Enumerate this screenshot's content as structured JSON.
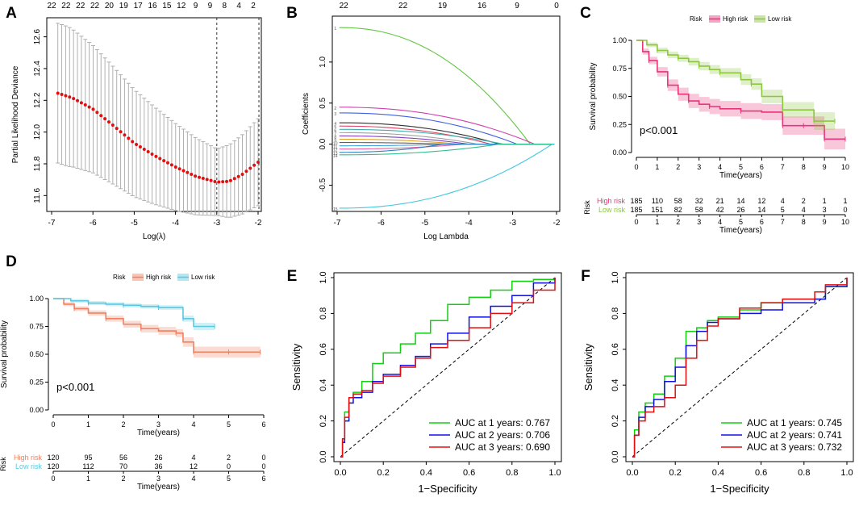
{
  "colors": {
    "lasso_points": "#e01010",
    "lasso_error": "#b0b0b0",
    "high_risk_c": "#e8357a",
    "low_risk_c": "#8cc63f",
    "high_risk_d": "#f08060",
    "low_risk_d": "#5bc8e0",
    "auc1": "#10d010",
    "auc2": "#1010e0",
    "auc3": "#e01010"
  },
  "panel_labels": [
    "A",
    "B",
    "C",
    "D",
    "E",
    "F"
  ],
  "chart_data": [
    {
      "type": "scatter",
      "panel": "A",
      "xlabel": "Log(λ)",
      "ylabel": "Partial Likelihood Deviance",
      "xlim": [
        -7,
        -2
      ],
      "ylim": [
        11.5,
        12.72
      ],
      "xticks": [
        -7,
        -6,
        -5,
        -4,
        -3,
        -2
      ],
      "yticks": [
        11.6,
        11.8,
        12.0,
        12.2,
        12.4,
        12.6
      ],
      "top_axis_labels": [
        "22",
        "22",
        "22",
        "22",
        "20",
        "19",
        "17",
        "16",
        "15",
        "12",
        "9",
        "9",
        "8",
        "4",
        "2"
      ],
      "vlines": [
        -3.0,
        -1.98
      ],
      "curve_points": [
        [
          -6.85,
          12.245
        ],
        [
          -6.5,
          12.215
        ],
        [
          -6.0,
          12.145
        ],
        [
          -5.5,
          12.04
        ],
        [
          -5.0,
          11.93
        ],
        [
          -4.5,
          11.85
        ],
        [
          -4.0,
          11.78
        ],
        [
          -3.5,
          11.72
        ],
        [
          -3.0,
          11.685
        ],
        [
          -2.7,
          11.69
        ],
        [
          -2.4,
          11.73
        ],
        [
          -2.0,
          11.81
        ]
      ],
      "error_half_width": 0.44,
      "error_half_width_at_min": 0.21
    },
    {
      "type": "line",
      "panel": "B",
      "xlabel": "Log Lambda",
      "ylabel": "Coefficients",
      "xlim": [
        -7,
        -2
      ],
      "ylim": [
        -0.8,
        1.5
      ],
      "xticks": [
        -7,
        -6,
        -5,
        -4,
        -3,
        -2
      ],
      "yticks": [
        -0.5,
        0.0,
        0.5,
        1.0
      ],
      "top_axis_labels": [
        "22",
        "22",
        "19",
        "16",
        "9",
        "0"
      ],
      "series": [
        {
          "name": "path1",
          "color": "#60c840",
          "start": 1.42,
          "end_x": -2.6
        },
        {
          "name": "path2",
          "color": "#d040b0",
          "start": 0.45,
          "end_x": -2.5
        },
        {
          "name": "path3",
          "color": "#4060e0",
          "start": 0.38,
          "end_x": -2.9
        },
        {
          "name": "path4",
          "color": "#303030",
          "start": 0.26,
          "end_x": -3.3
        },
        {
          "name": "path5",
          "color": "#e04060",
          "start": 0.22,
          "end_x": -3.5
        },
        {
          "name": "path6",
          "color": "#40b0b0",
          "start": 0.18,
          "end_x": -3.2
        },
        {
          "name": "path7",
          "color": "#a0a0a0",
          "start": 0.14,
          "end_x": -3.8
        },
        {
          "name": "path8",
          "color": "#8040c0",
          "start": 0.1,
          "end_x": -4.0
        },
        {
          "name": "path9",
          "color": "#e0a020",
          "start": 0.06,
          "end_x": -4.2
        },
        {
          "name": "path10",
          "color": "#606060",
          "start": 0.02,
          "end_x": -4.5
        },
        {
          "name": "path11",
          "color": "#40a0e0",
          "start": -0.02,
          "end_x": -4.4
        },
        {
          "name": "path12",
          "color": "#e060a0",
          "start": -0.06,
          "end_x": -4.1
        },
        {
          "name": "path13",
          "color": "#3080c0",
          "start": -0.1,
          "end_x": -4.6
        },
        {
          "name": "path14",
          "color": "#30c090",
          "start": -0.13,
          "end_x": -3.3
        },
        {
          "name": "path15",
          "color": "#40c8e0",
          "start": -0.78,
          "end_x": -2.1
        }
      ]
    },
    {
      "type": "line",
      "panel": "C",
      "title": "Risk",
      "legend": [
        "High risk",
        "Low risk"
      ],
      "xlabel": "Time(years)",
      "ylabel": "Survival probability",
      "xlim": [
        0,
        10
      ],
      "ylim": [
        0,
        1
      ],
      "xticks": [
        0,
        1,
        2,
        3,
        4,
        5,
        6,
        7,
        8,
        9,
        10
      ],
      "yticks": [
        "0.00",
        "0.25",
        "0.50",
        "0.75",
        "1.00"
      ],
      "annotation": "p<0.001",
      "series": [
        {
          "name": "High risk",
          "x": [
            0,
            0.3,
            0.6,
            1,
            1.5,
            2,
            2.5,
            3,
            3.5,
            4,
            5,
            6,
            7,
            7.5,
            8,
            8.5,
            9,
            9.5,
            10
          ],
          "y": [
            1.0,
            0.9,
            0.82,
            0.72,
            0.6,
            0.52,
            0.46,
            0.43,
            0.41,
            0.39,
            0.37,
            0.36,
            0.24,
            0.24,
            0.24,
            0.24,
            0.12,
            0.12,
            0.12
          ]
        },
        {
          "name": "Low risk",
          "x": [
            0,
            0.5,
            1,
            1.5,
            2,
            2.5,
            3,
            3.5,
            4,
            5,
            5.5,
            6,
            7,
            8,
            8.5,
            9,
            9.5
          ],
          "y": [
            1.0,
            0.96,
            0.91,
            0.87,
            0.84,
            0.81,
            0.77,
            0.74,
            0.71,
            0.65,
            0.61,
            0.5,
            0.38,
            0.38,
            0.28,
            0.28,
            0.28
          ]
        }
      ],
      "risk_table": {
        "title": "Risk",
        "xlabel": "Time(years)",
        "rows": [
          {
            "label": "High risk",
            "values": [
              "185",
              "110",
              "58",
              "32",
              "21",
              "14",
              "12",
              "4",
              "2",
              "1",
              "1"
            ]
          },
          {
            "label": "Low risk",
            "values": [
              "185",
              "151",
              "82",
              "58",
              "42",
              "26",
              "14",
              "5",
              "4",
              "3",
              "0"
            ]
          }
        ]
      }
    },
    {
      "type": "line",
      "panel": "D",
      "title": "Risk",
      "legend": [
        "High risk",
        "Low risk"
      ],
      "xlabel": "Time(years)",
      "ylabel": "Survival probability",
      "xlim": [
        0,
        6
      ],
      "ylim": [
        0,
        1
      ],
      "xticks": [
        0,
        1,
        2,
        3,
        4,
        5,
        6
      ],
      "yticks": [
        "0.00",
        "0.25",
        "0.50",
        "0.75",
        "1.00"
      ],
      "annotation": "p<0.001",
      "series": [
        {
          "name": "High risk",
          "x": [
            0,
            0.3,
            0.6,
            1,
            1.5,
            2,
            2.5,
            3,
            3.5,
            3.7,
            4,
            4.5,
            5,
            5.5,
            5.9
          ],
          "y": [
            1.0,
            0.95,
            0.91,
            0.87,
            0.82,
            0.77,
            0.73,
            0.71,
            0.69,
            0.61,
            0.52,
            0.52,
            0.52,
            0.52,
            0.52
          ]
        },
        {
          "name": "Low risk",
          "x": [
            0,
            0.5,
            1,
            1.5,
            2,
            2.5,
            3,
            3.5,
            3.7,
            4,
            4.6
          ],
          "y": [
            1.0,
            0.98,
            0.96,
            0.95,
            0.94,
            0.93,
            0.92,
            0.92,
            0.82,
            0.75,
            0.75
          ]
        }
      ],
      "risk_table": {
        "title": "Risk",
        "xlabel": "Time(years)",
        "rows": [
          {
            "label": "High risk",
            "values": [
              "120",
              "95",
              "56",
              "26",
              "4",
              "2",
              "0"
            ]
          },
          {
            "label": "Low risk",
            "values": [
              "120",
              "112",
              "70",
              "36",
              "12",
              "0",
              "0"
            ]
          }
        ]
      }
    },
    {
      "type": "line",
      "panel": "E",
      "xlabel": "1−Specificity",
      "ylabel": "Sensitivity",
      "xlim": [
        0,
        1
      ],
      "ylim": [
        0,
        1
      ],
      "xticks": [
        "0.0",
        "0.2",
        "0.4",
        "0.6",
        "0.8",
        "1.0"
      ],
      "yticks": [
        "0.0",
        "0.2",
        "0.4",
        "0.6",
        "0.8",
        "1.0"
      ],
      "series": [
        {
          "name": "AUC at 1 years: 0.767",
          "x": [
            0,
            0.01,
            0.02,
            0.04,
            0.06,
            0.1,
            0.15,
            0.2,
            0.28,
            0.35,
            0.42,
            0.5,
            0.6,
            0.7,
            0.8,
            0.9,
            1.0
          ],
          "y": [
            0,
            0.1,
            0.25,
            0.33,
            0.36,
            0.42,
            0.52,
            0.58,
            0.63,
            0.69,
            0.76,
            0.85,
            0.89,
            0.93,
            0.98,
            0.99,
            1.0
          ]
        },
        {
          "name": "AUC at 2 years: 0.706",
          "x": [
            0,
            0.01,
            0.02,
            0.04,
            0.06,
            0.1,
            0.15,
            0.2,
            0.28,
            0.35,
            0.42,
            0.5,
            0.6,
            0.7,
            0.8,
            0.9,
            1.0
          ],
          "y": [
            0,
            0.08,
            0.2,
            0.3,
            0.33,
            0.36,
            0.42,
            0.46,
            0.51,
            0.56,
            0.63,
            0.69,
            0.78,
            0.84,
            0.9,
            0.97,
            1.0
          ]
        },
        {
          "name": "AUC at 3 years: 0.690",
          "x": [
            0,
            0.01,
            0.02,
            0.04,
            0.06,
            0.1,
            0.15,
            0.2,
            0.28,
            0.35,
            0.42,
            0.5,
            0.6,
            0.7,
            0.8,
            0.9,
            1.0
          ],
          "y": [
            0,
            0.1,
            0.22,
            0.33,
            0.35,
            0.37,
            0.41,
            0.45,
            0.5,
            0.55,
            0.61,
            0.65,
            0.72,
            0.8,
            0.86,
            0.93,
            1.0
          ]
        }
      ]
    },
    {
      "type": "line",
      "panel": "F",
      "xlabel": "1−Specificity",
      "ylabel": "Sensitivity",
      "xlim": [
        0,
        1
      ],
      "ylim": [
        0,
        1
      ],
      "xticks": [
        "0.0",
        "0.2",
        "0.4",
        "0.6",
        "0.8",
        "1.0"
      ],
      "yticks": [
        "0.0",
        "0.2",
        "0.4",
        "0.6",
        "0.8",
        "1.0"
      ],
      "series": [
        {
          "name": "AUC at 1 years: 0.745",
          "x": [
            0,
            0.01,
            0.03,
            0.06,
            0.1,
            0.15,
            0.2,
            0.25,
            0.3,
            0.35,
            0.4,
            0.5,
            0.6,
            0.7,
            0.85,
            0.9,
            1.0
          ],
          "y": [
            0,
            0.15,
            0.25,
            0.3,
            0.35,
            0.45,
            0.55,
            0.7,
            0.72,
            0.76,
            0.78,
            0.82,
            0.86,
            0.88,
            0.88,
            0.95,
            1.0
          ]
        },
        {
          "name": "AUC at 2 years: 0.741",
          "x": [
            0,
            0.01,
            0.03,
            0.06,
            0.1,
            0.15,
            0.2,
            0.25,
            0.3,
            0.35,
            0.4,
            0.5,
            0.6,
            0.7,
            0.85,
            0.9,
            1.0
          ],
          "y": [
            0,
            0.12,
            0.22,
            0.28,
            0.32,
            0.42,
            0.5,
            0.62,
            0.7,
            0.75,
            0.77,
            0.8,
            0.82,
            0.86,
            0.88,
            0.95,
            1.0
          ]
        },
        {
          "name": "AUC at 3 years: 0.732",
          "x": [
            0,
            0.01,
            0.03,
            0.06,
            0.1,
            0.15,
            0.2,
            0.25,
            0.3,
            0.35,
            0.4,
            0.5,
            0.6,
            0.7,
            0.85,
            0.9,
            1.0
          ],
          "y": [
            0,
            0.12,
            0.2,
            0.25,
            0.28,
            0.33,
            0.4,
            0.55,
            0.65,
            0.73,
            0.77,
            0.83,
            0.86,
            0.88,
            0.92,
            0.96,
            1.0
          ]
        }
      ]
    }
  ]
}
